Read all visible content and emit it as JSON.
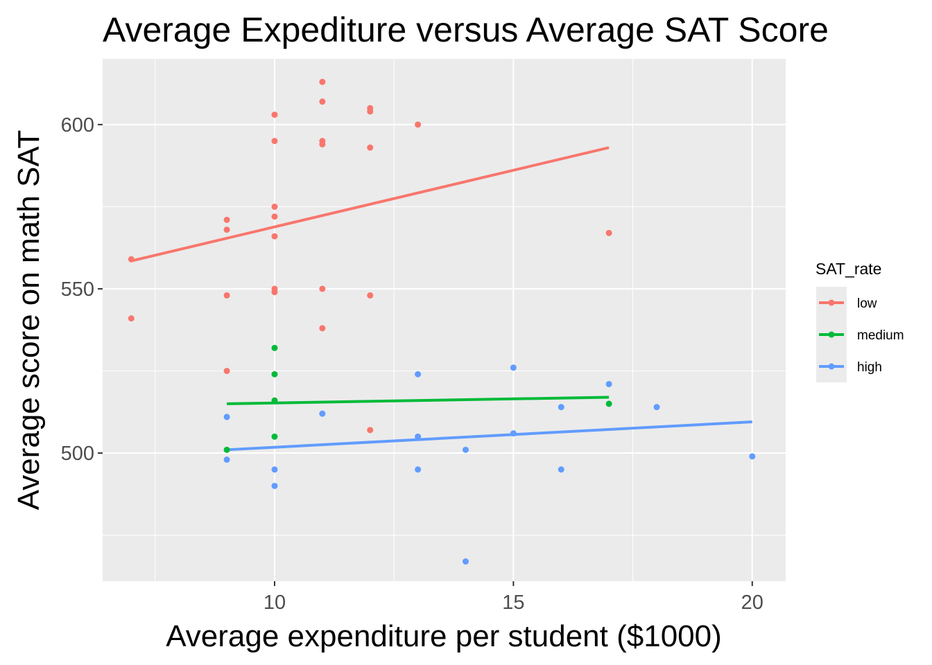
{
  "chart_data": {
    "type": "scatter",
    "title": "Average Expediture versus Average SAT Score",
    "xlabel": "Average expenditure per student ($1000)",
    "ylabel": "Average score on math SAT",
    "xlim": [
      6.4,
      20.7
    ],
    "ylim": [
      461,
      620
    ],
    "x_ticks": [
      10,
      15,
      20
    ],
    "y_ticks": [
      500,
      550,
      600
    ],
    "x_minor": [
      7.5,
      12.5,
      17.5
    ],
    "y_minor": [
      475,
      525,
      575
    ],
    "background": "#ebebeb",
    "grid": true,
    "legend": {
      "title": "SAT_rate",
      "position": "right",
      "entries": [
        "low",
        "medium",
        "high"
      ]
    },
    "series": [
      {
        "name": "low",
        "color": "#f8766d",
        "points": [
          [
            7,
            559
          ],
          [
            7,
            541
          ],
          [
            9,
            571
          ],
          [
            9,
            568
          ],
          [
            9,
            548
          ],
          [
            9,
            525
          ],
          [
            10,
            603
          ],
          [
            10,
            595
          ],
          [
            10,
            575
          ],
          [
            10,
            572
          ],
          [
            10,
            566
          ],
          [
            10,
            550
          ],
          [
            10,
            549
          ],
          [
            11,
            613
          ],
          [
            11,
            607
          ],
          [
            11,
            595
          ],
          [
            11,
            594
          ],
          [
            11,
            550
          ],
          [
            11,
            538
          ],
          [
            12,
            605
          ],
          [
            12,
            604
          ],
          [
            12,
            593
          ],
          [
            12,
            548
          ],
          [
            12,
            507
          ],
          [
            13,
            600
          ],
          [
            17,
            567
          ]
        ],
        "trend": [
          [
            7,
            558.5
          ],
          [
            17,
            593
          ]
        ]
      },
      {
        "name": "medium",
        "color": "#00ba38",
        "points": [
          [
            9,
            501
          ],
          [
            10,
            532
          ],
          [
            10,
            524
          ],
          [
            10,
            516
          ],
          [
            10,
            505
          ],
          [
            17,
            515
          ]
        ],
        "trend": [
          [
            9,
            515
          ],
          [
            17,
            517
          ]
        ]
      },
      {
        "name": "high",
        "color": "#619cff",
        "points": [
          [
            9,
            511
          ],
          [
            9,
            498
          ],
          [
            10,
            495
          ],
          [
            10,
            490
          ],
          [
            11,
            512
          ],
          [
            13,
            524
          ],
          [
            13,
            505
          ],
          [
            13,
            495
          ],
          [
            14,
            501
          ],
          [
            14,
            467
          ],
          [
            15,
            526
          ],
          [
            15,
            506
          ],
          [
            16,
            514
          ],
          [
            16,
            495
          ],
          [
            17,
            521
          ],
          [
            18,
            514
          ],
          [
            20,
            499
          ]
        ],
        "trend": [
          [
            9,
            501
          ],
          [
            20,
            509.5
          ]
        ]
      }
    ]
  }
}
